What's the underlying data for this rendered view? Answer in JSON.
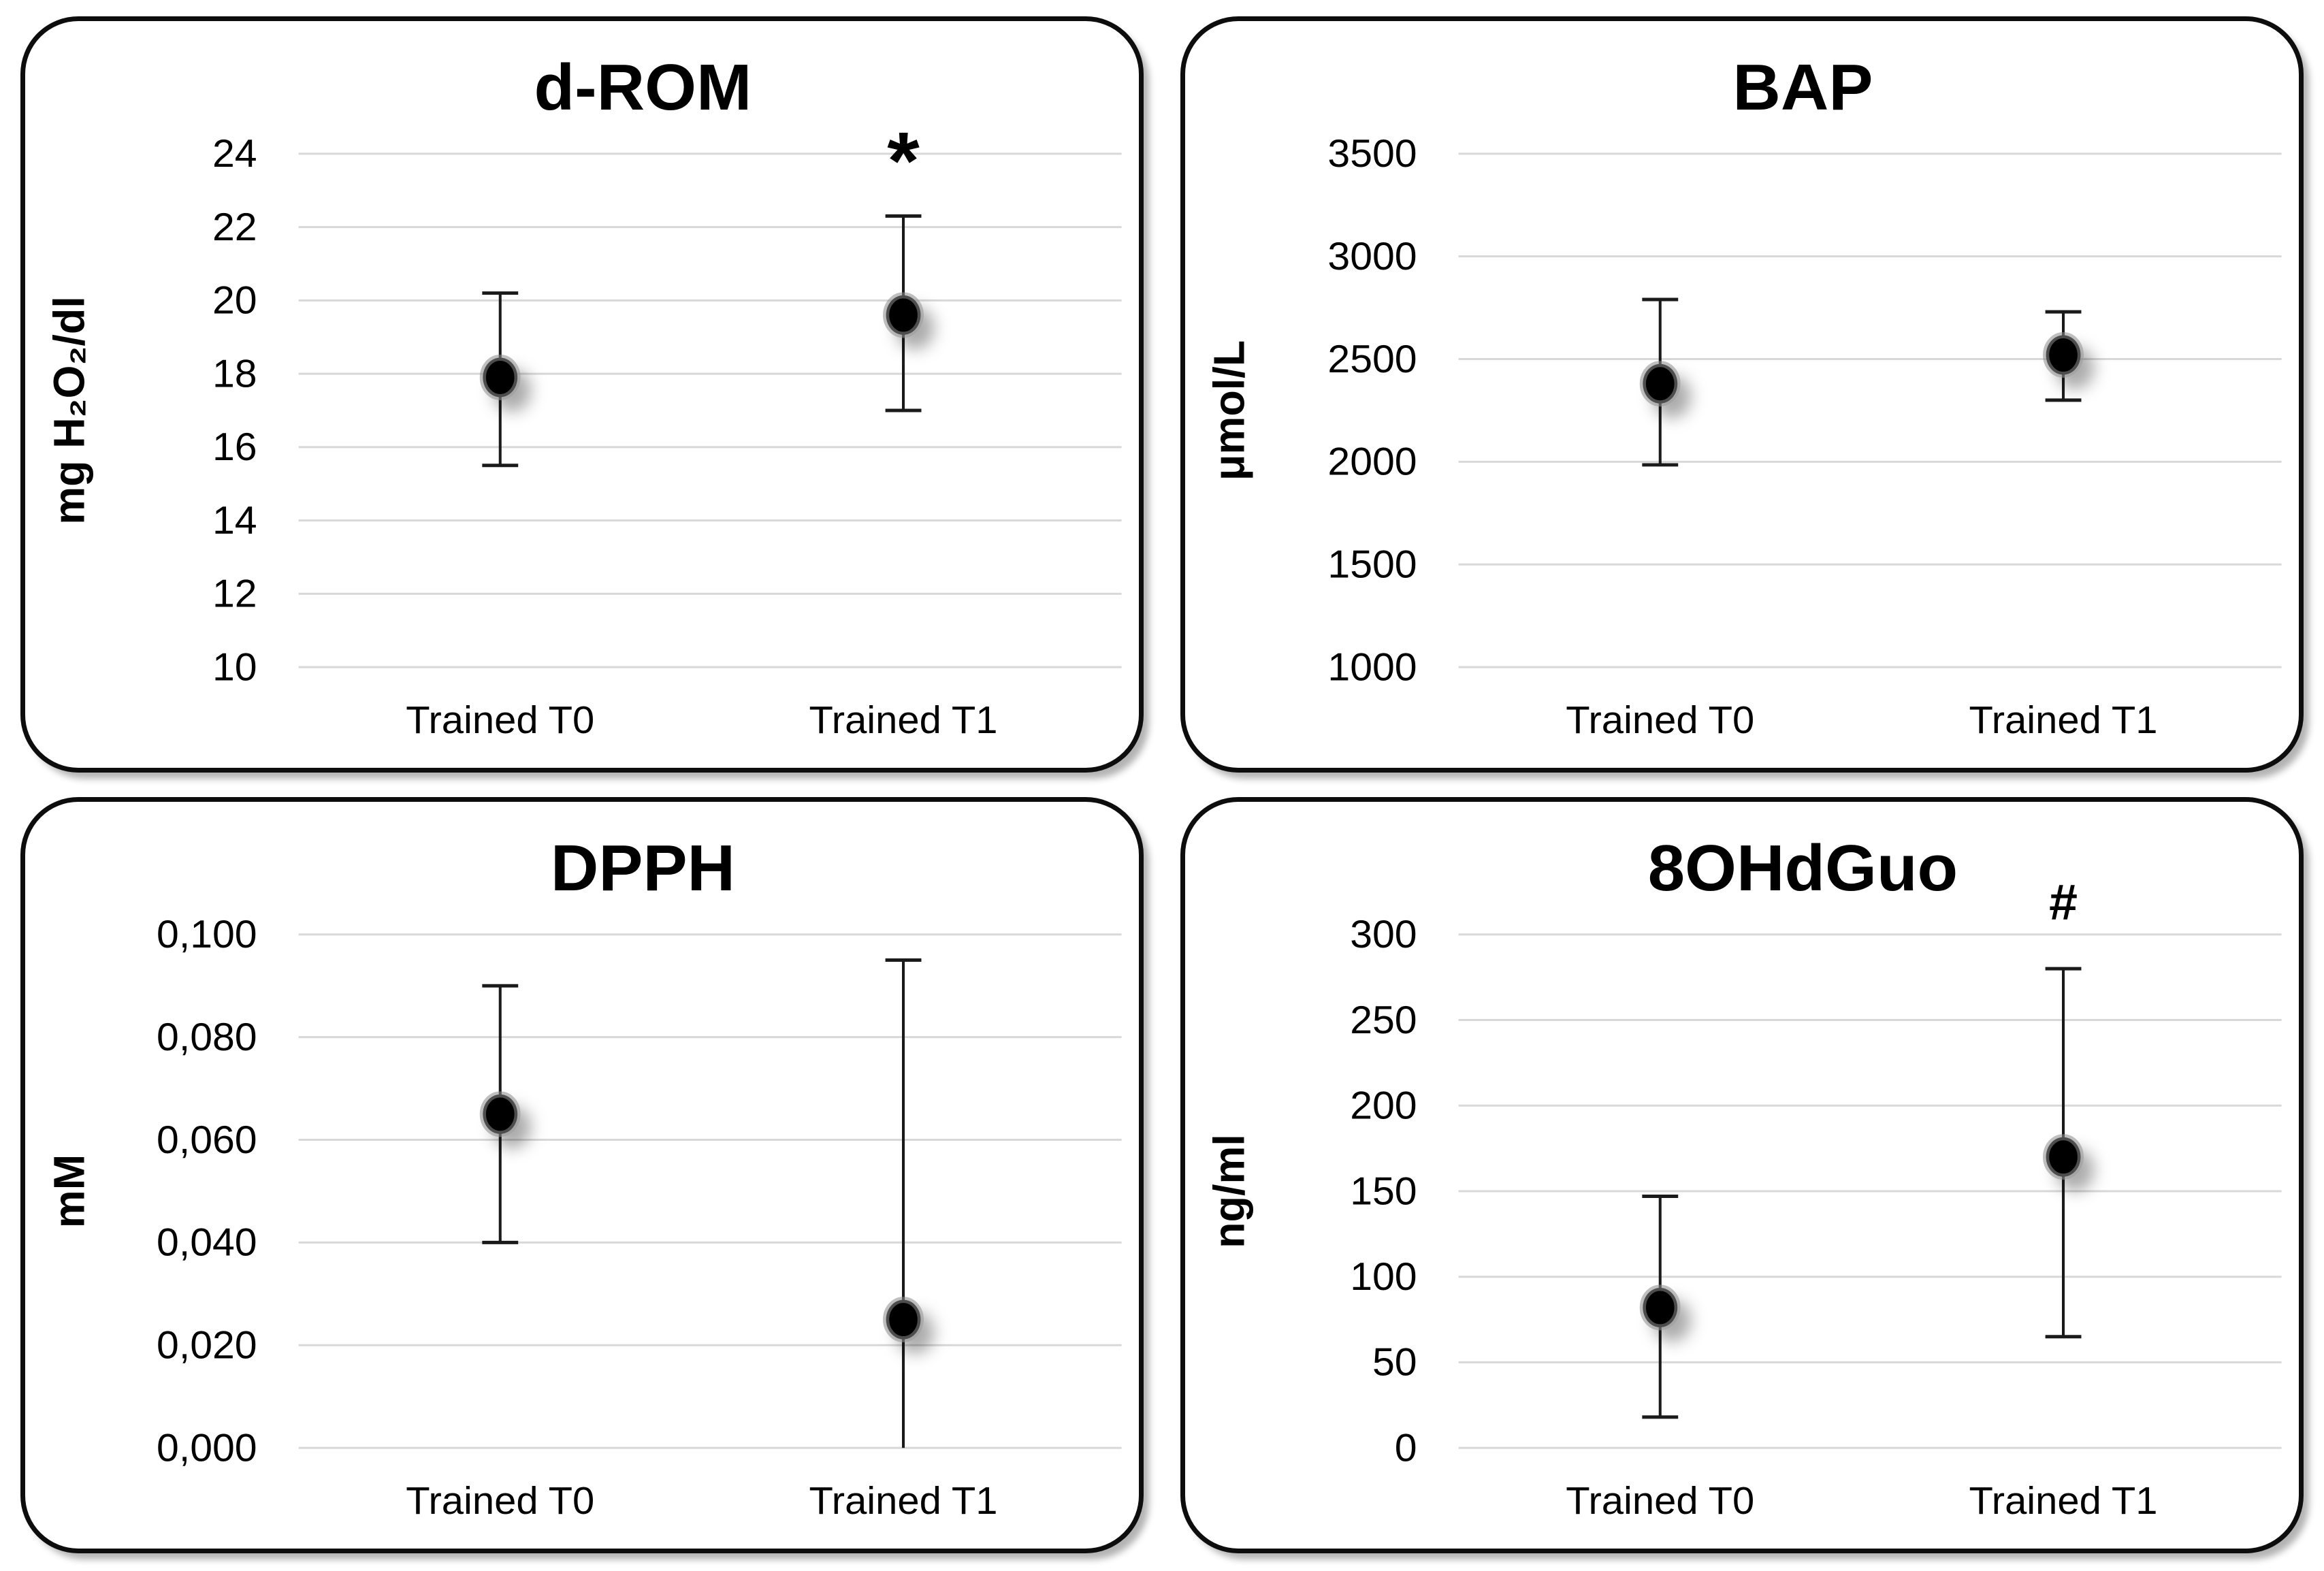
{
  "figure": {
    "background": "#ffffff",
    "panel_border_color": "#0d0d0d",
    "gridline_color": "#d8d8d8",
    "marker_color": "#060606",
    "error_bar_color": "#1a1a1a",
    "text_color": "#000000"
  },
  "chart_data": [
    {
      "type": "scatter",
      "title": "d-ROM",
      "ylabel": "mg H₂O₂/dl",
      "categories": [
        "Trained T0",
        "Trained T1"
      ],
      "ylim": [
        10,
        24
      ],
      "yticks": [
        24,
        22,
        20,
        18,
        16,
        14,
        12,
        10
      ],
      "ytick_labels": [
        "24",
        "22",
        "20",
        "18",
        "16",
        "14",
        "12",
        "10"
      ],
      "grid": true,
      "legend": "none",
      "series": [
        {
          "name": "Trained",
          "points": [
            {
              "category": "Trained T0",
              "mean": 17.9,
              "err_low": 15.5,
              "err_high": 20.2,
              "annotation": ""
            },
            {
              "category": "Trained T1",
              "mean": 19.6,
              "err_low": 17.0,
              "err_high": 22.3,
              "annotation": "*"
            }
          ]
        }
      ]
    },
    {
      "type": "scatter",
      "title": "BAP",
      "ylabel": "μmol/L",
      "categories": [
        "Trained T0",
        "Trained T1"
      ],
      "ylim": [
        1000,
        3500
      ],
      "yticks": [
        3500,
        3000,
        2500,
        2000,
        1500,
        1000
      ],
      "ytick_labels": [
        "3500",
        "3000",
        "2500",
        "2000",
        "1500",
        "1000"
      ],
      "grid": true,
      "legend": "none",
      "series": [
        {
          "name": "Trained",
          "points": [
            {
              "category": "Trained T0",
              "mean": 2380,
              "err_low": 1985,
              "err_high": 2790,
              "annotation": ""
            },
            {
              "category": "Trained T1",
              "mean": 2520,
              "err_low": 2300,
              "err_high": 2730,
              "annotation": ""
            }
          ]
        }
      ]
    },
    {
      "type": "scatter",
      "title": "DPPH",
      "ylabel": "mM",
      "categories": [
        "Trained T0",
        "Trained T1"
      ],
      "ylim": [
        0,
        0.1
      ],
      "yticks": [
        0.1,
        0.08,
        0.06,
        0.04,
        0.02,
        0
      ],
      "ytick_labels": [
        "0,100",
        "0,080",
        "0,060",
        "0,040",
        "0,020",
        "0,000"
      ],
      "grid": true,
      "legend": "none",
      "series": [
        {
          "name": "Trained",
          "points": [
            {
              "category": "Trained T0",
              "mean": 0.065,
              "err_low": 0.04,
              "err_high": 0.09,
              "annotation": ""
            },
            {
              "category": "Trained T1",
              "mean": 0.025,
              "err_low": 0.0,
              "err_high": 0.095,
              "annotation": "",
              "low_cap": false
            }
          ]
        }
      ]
    },
    {
      "type": "scatter",
      "title": "8OHdGuo",
      "ylabel": "ng/ml",
      "categories": [
        "Trained T0",
        "Trained T1"
      ],
      "ylim": [
        0,
        300
      ],
      "yticks": [
        300,
        250,
        200,
        150,
        100,
        50,
        0
      ],
      "ytick_labels": [
        "300",
        "250",
        "200",
        "150",
        "100",
        "50",
        "0"
      ],
      "grid": true,
      "legend": "none",
      "series": [
        {
          "name": "Trained",
          "points": [
            {
              "category": "Trained T0",
              "mean": 82,
              "err_low": 18,
              "err_high": 147,
              "annotation": ""
            },
            {
              "category": "Trained T1",
              "mean": 170,
              "err_low": 65,
              "err_high": 280,
              "annotation": "#"
            }
          ]
        }
      ]
    }
  ]
}
